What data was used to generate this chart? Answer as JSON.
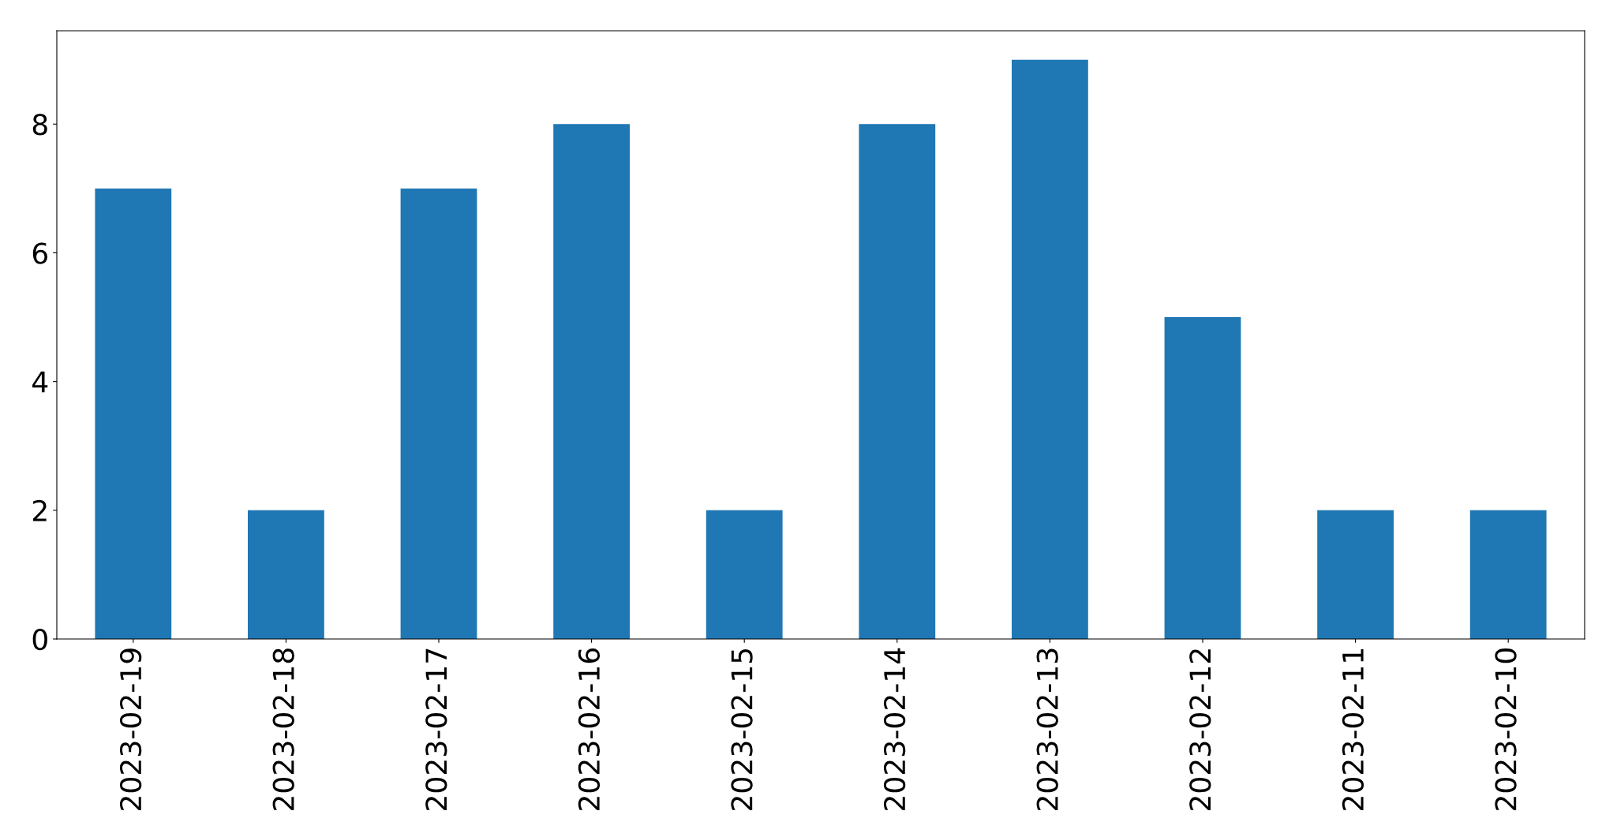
{
  "chart_data": {
    "type": "bar",
    "categories": [
      "2023-02-19",
      "2023-02-18",
      "2023-02-17",
      "2023-02-16",
      "2023-02-15",
      "2023-02-14",
      "2023-02-13",
      "2023-02-12",
      "2023-02-11",
      "2023-02-10"
    ],
    "values": [
      7,
      2,
      7,
      8,
      2,
      8,
      9,
      5,
      2,
      2
    ],
    "color": "#1f77b4",
    "ylim": [
      0,
      9.45
    ],
    "yticks": [
      0,
      2,
      4,
      6,
      8
    ],
    "grid": false
  }
}
